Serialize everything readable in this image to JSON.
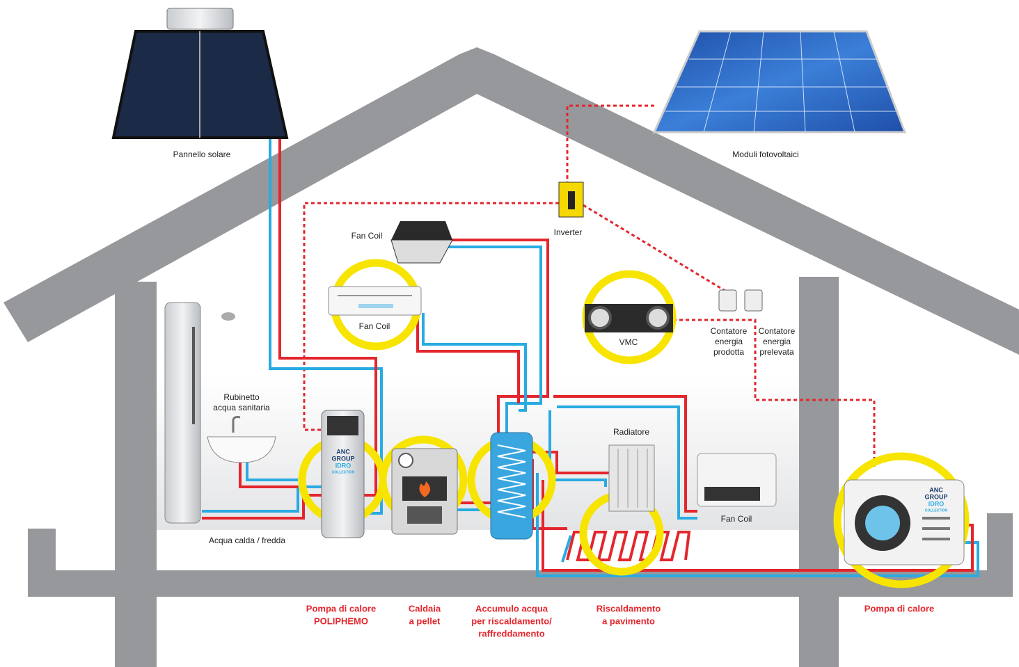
{
  "labels": {
    "solar_panel": "Pannello solare",
    "pv_modules": "Moduli fotovoltaici",
    "inverter": "Inverter",
    "fan_coil_ceiling": "Fan Coil",
    "fan_coil_wall": "Fan Coil",
    "vmc": "VMC",
    "meter_produced": [
      "Contatore",
      "energia",
      "prodotta"
    ],
    "meter_drawn": [
      "Contatore",
      "energia",
      "prelevata"
    ],
    "tap": [
      "Rubinetto",
      "acqua sanitaria"
    ],
    "radiator": "Radiatore",
    "fan_coil_floor": "Fan Coil",
    "water": "Acqua calda / fredda"
  },
  "products": [
    {
      "lines": [
        "Pompa di calore",
        "POLIPHEMO"
      ]
    },
    {
      "lines": [
        "Caldaia",
        "a pellet"
      ]
    },
    {
      "lines": [
        "Accumulo acqua",
        "per riscaldamento/",
        "raffreddamento"
      ]
    },
    {
      "lines": [
        "Riscaldamento",
        "a pavimento"
      ]
    },
    {
      "lines": [
        "Pompa di calore"
      ]
    }
  ],
  "brand": [
    "ANC",
    "GROUP",
    "IDRO",
    "COLLECTION"
  ]
}
